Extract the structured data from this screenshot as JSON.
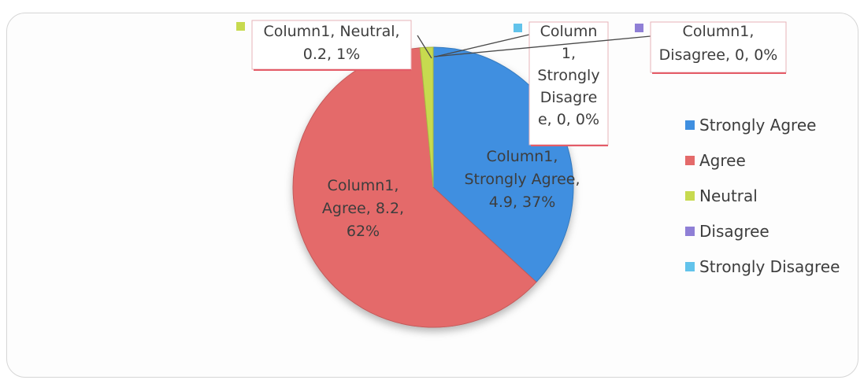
{
  "chart_data": {
    "type": "pie",
    "series": [
      {
        "name": "Column1",
        "categories": [
          "Strongly Agree",
          "Agree",
          "Neutral",
          "Disagree",
          "Strongly Disagree"
        ],
        "values": [
          4.9,
          8.2,
          0.2,
          0,
          0
        ],
        "percents": [
          "37%",
          "62%",
          "1%",
          "0%",
          "0%"
        ]
      }
    ],
    "colors": {
      "Strongly Agree": "#3f8fe0",
      "Agree": "#e46a6a",
      "Neutral": "#c7da4f",
      "Disagree": "#8f7fd6",
      "Strongly Disagree": "#62c3eb"
    },
    "legend": {
      "position": "right",
      "items": [
        "Strongly Agree",
        "Agree",
        "Neutral",
        "Disagree",
        "Strongly Disagree"
      ]
    },
    "data_labels": [
      {
        "category": "Strongly Agree",
        "lines": [
          "Column1,",
          "Strongly Agree,",
          "4.9, 37%"
        ]
      },
      {
        "category": "Agree",
        "lines": [
          "Column1,",
          "Agree, 8.2,",
          "62%"
        ]
      },
      {
        "category": "Neutral",
        "lines": [
          "Column1, Neutral,",
          "0.2, 1%"
        ]
      },
      {
        "category": "Strongly Disagree",
        "lines": [
          "Column",
          "1,",
          "Strongly",
          "Disagre",
          "e, 0, 0%"
        ]
      },
      {
        "category": "Disagree",
        "lines": [
          "Column1,",
          "Disagree, 0, 0%"
        ]
      }
    ]
  }
}
